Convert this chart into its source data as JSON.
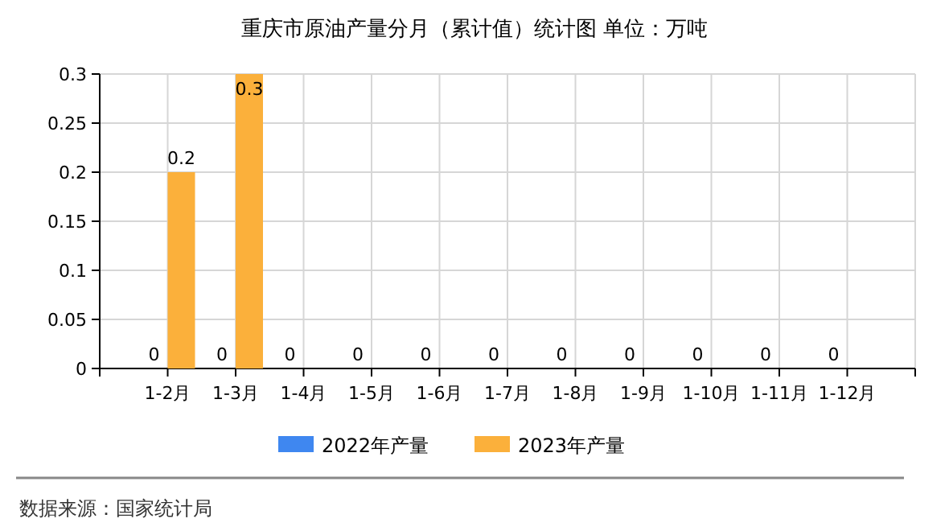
{
  "chart_data": {
    "type": "bar",
    "title": "重庆市原油产量分月（累计值）统计图 单位：万吨",
    "categories": [
      "1-2月",
      "1-3月",
      "1-4月",
      "1-5月",
      "1-6月",
      "1-7月",
      "1-8月",
      "1-9月",
      "1-10月",
      "1-11月",
      "1-12月"
    ],
    "series": [
      {
        "name": "2022年产量",
        "color": "#3f87f0",
        "values": [
          0,
          0,
          0,
          0,
          0,
          0,
          0,
          0,
          0,
          0,
          0
        ]
      },
      {
        "name": "2023年产量",
        "color": "#fbb03b",
        "values": [
          0.2,
          0.3,
          null,
          null,
          null,
          null,
          null,
          null,
          null,
          null,
          null
        ]
      }
    ],
    "ylim": [
      0,
      0.3
    ],
    "yticks": [
      0,
      {
        "value": 0.05,
        "label": "0.05"
      },
      {
        "value": 0.1,
        "label": "0.1"
      },
      {
        "value": 0.15,
        "label": "0.15"
      },
      {
        "value": 0.2,
        "label": "0.2"
      },
      {
        "value": 0.25,
        "label": "0.25"
      },
      {
        "value": 0.3,
        "label": "0.3"
      }
    ],
    "grid": true,
    "legend": "bottom",
    "data_labels": true,
    "annotations": [
      "数据来源：国家统计局"
    ]
  }
}
